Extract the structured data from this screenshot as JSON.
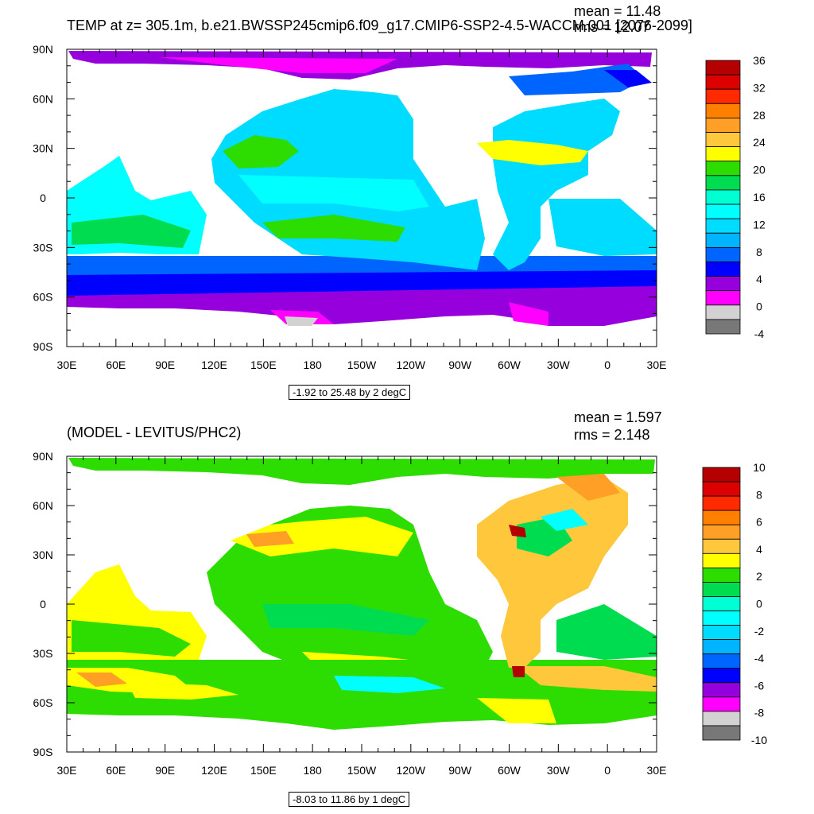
{
  "panels": [
    {
      "title": "TEMP at z= 305.1m, b.e21.BWSSP245cmip6.f09_g17.CMIP6-SSP2-4.5-WACCM.001 [2076-2099]",
      "mean_text": "mean = 11.48",
      "rms_text": "rms = 12.07",
      "range_text": "-1.92 to 25.48 by 2 degC",
      "x_ticks": [
        "30E",
        "60E",
        "90E",
        "120E",
        "150E",
        "180",
        "150W",
        "120W",
        "90W",
        "60W",
        "30W",
        "0",
        "30E"
      ],
      "y_ticks": [
        "90N",
        "60N",
        "30N",
        "0",
        "30S",
        "60S",
        "90S"
      ],
      "colorbar_labels": [
        "36",
        "32",
        "28",
        "24",
        "20",
        "16",
        "12",
        "8",
        "4",
        "0",
        "-4"
      ],
      "colorbar_colors": [
        "#b40000",
        "#dc0000",
        "#ff2a00",
        "#ff7f00",
        "#ff9f26",
        "#ffc83c",
        "#ffff00",
        "#2ddc00",
        "#00dc50",
        "#00ffd2",
        "#00ffff",
        "#00dcff",
        "#00b4ff",
        "#0064ff",
        "#0000ff",
        "#9600dc",
        "#ff00ff",
        "#d2d2d2",
        "#787878"
      ]
    },
    {
      "title": "(MODEL - LEVITUS/PHC2)",
      "mean_text": "mean = 1.597",
      "rms_text": "rms = 2.148",
      "range_text": "-8.03 to 11.86 by 1 degC",
      "x_ticks": [
        "30E",
        "60E",
        "90E",
        "120E",
        "150E",
        "180",
        "150W",
        "120W",
        "90W",
        "60W",
        "30W",
        "0",
        "30E"
      ],
      "y_ticks": [
        "90N",
        "60N",
        "30N",
        "0",
        "30S",
        "60S",
        "90S"
      ],
      "colorbar_labels": [
        "10",
        "8",
        "6",
        "4",
        "2",
        "0",
        "-2",
        "-4",
        "-6",
        "-8",
        "-10"
      ],
      "colorbar_colors": [
        "#b40000",
        "#dc0000",
        "#ff2a00",
        "#ff7f00",
        "#ff9f26",
        "#ffc83c",
        "#ffff00",
        "#2ddc00",
        "#00dc50",
        "#00ffd2",
        "#00ffff",
        "#00dcff",
        "#00b4ff",
        "#0064ff",
        "#0000ff",
        "#9600dc",
        "#ff00ff",
        "#d2d2d2",
        "#787878"
      ]
    }
  ]
}
